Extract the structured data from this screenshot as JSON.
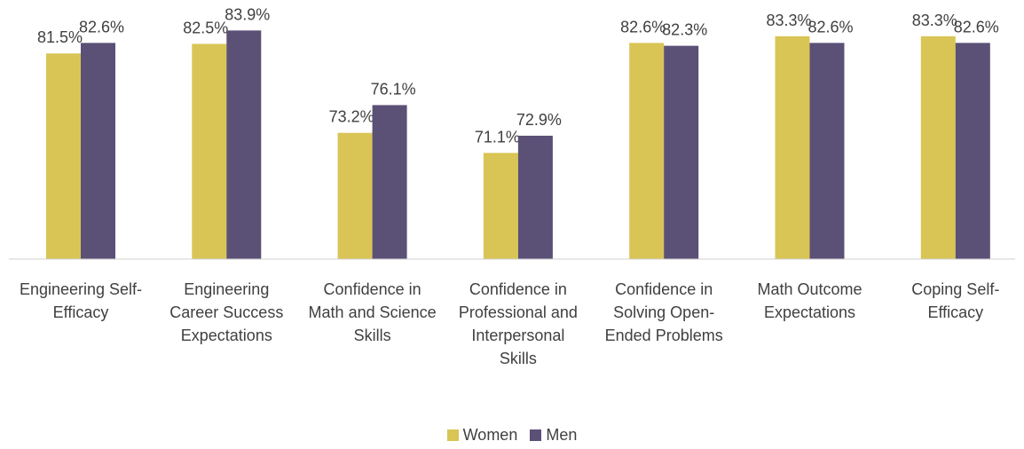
{
  "chart_data": {
    "type": "bar",
    "categories": [
      "Engineering Self-Efficacy",
      "Engineering Career Success Expectations",
      "Confidence in Math and Science Skills",
      "Confidence in Professional and Interpersonal Skills",
      "Confidence in Solving Open-Ended Problems",
      "Math Outcome Expectations",
      "Coping Self-Efficacy"
    ],
    "series": [
      {
        "name": "Women",
        "color": "#d9c456",
        "values": [
          81.5,
          82.5,
          73.2,
          71.1,
          82.6,
          83.3,
          83.3
        ],
        "value_labels": [
          "81.5%",
          "82.5%",
          "73.2%",
          "71.1%",
          "82.6%",
          "83.3%",
          "83.3%"
        ]
      },
      {
        "name": "Men",
        "color": "#5b5076",
        "values": [
          82.6,
          83.9,
          76.1,
          72.9,
          82.3,
          82.6,
          82.6
        ],
        "value_labels": [
          "82.6%",
          "83.9%",
          "76.1%",
          "72.9%",
          "82.3%",
          "82.6%",
          "82.6%"
        ]
      }
    ],
    "ylim": [
      60,
      85
    ],
    "legend": "bottom"
  }
}
